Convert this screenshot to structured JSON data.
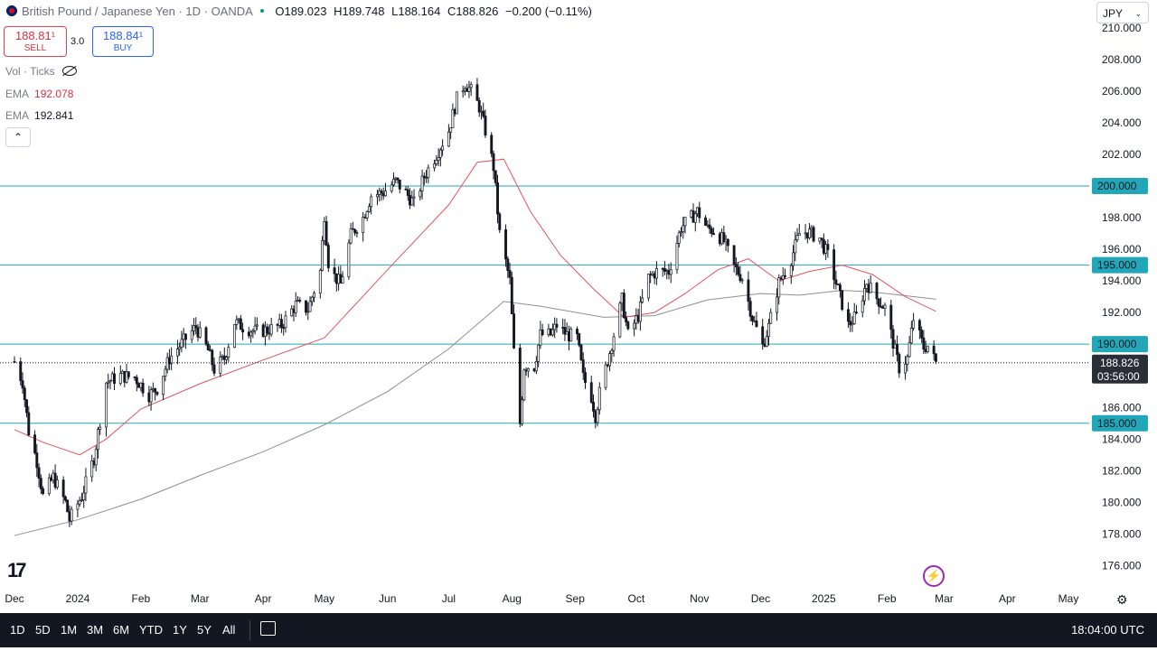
{
  "header": {
    "symbol_title": "British Pound / Japanese Yen · 1D · OANDA",
    "o_label": "O",
    "o_value": "189.023",
    "h_label": "H",
    "h_value": "189.748",
    "l_label": "L",
    "l_value": "188.164",
    "c_label": "C",
    "c_value": "188.826",
    "change": "−0.200 (−0.11%)"
  },
  "trade": {
    "sell_price": "188.81¹",
    "sell_label": "SELL",
    "spread": "3.0",
    "buy_price": "188.84¹",
    "buy_label": "BUY"
  },
  "indicators": {
    "volume_label": "Vol · Ticks",
    "ema1_label": "EMA",
    "ema1_value": "192.078",
    "ema2_label": "EMA",
    "ema2_value": "192.841"
  },
  "collapse_icon": "chevron-up-icon",
  "currency": {
    "label": "JPY"
  },
  "colors": {
    "up": "#131722",
    "down": "#131722",
    "ema_fast": "#e0555e",
    "ema_slow": "#8f8f8f",
    "hline": "#22a7b8",
    "accent": "#2962ff"
  },
  "chart_data": {
    "type": "candlestick",
    "symbol": "GBP/JPY",
    "ylim": [
      175,
      210.5
    ],
    "yticks": [
      "210.000",
      "208.000",
      "206.000",
      "204.000",
      "202.000",
      "200.000",
      "198.000",
      "196.000",
      "194.000",
      "192.000",
      "190.000",
      "188.000",
      "186.000",
      "184.000",
      "182.000",
      "180.000",
      "178.000",
      "176.000"
    ],
    "xlabels": [
      "Dec",
      "2024",
      "Feb",
      "Mar",
      "Apr",
      "May",
      "Jun",
      "Jul",
      "Aug",
      "Sep",
      "Oct",
      "Nov",
      "Dec",
      "2025",
      "Feb",
      "Mar",
      "Apr",
      "May"
    ],
    "date_range": [
      "2023-12-01",
      "2025-02-25"
    ],
    "horizontal_levels": [
      {
        "price": 200.0,
        "label": "200.000"
      },
      {
        "price": 195.0,
        "label": "195.000"
      },
      {
        "price": 190.0,
        "label": "190.000"
      },
      {
        "price": 185.0,
        "label": "185.000"
      }
    ],
    "last_price": {
      "price": 188.826,
      "label": "188.826",
      "countdown": "03:56:00"
    },
    "close_path": [
      [
        "2023-12-01",
        188.9
      ],
      [
        "2023-12-05",
        187.6
      ],
      [
        "2023-12-08",
        184.5
      ],
      [
        "2023-12-12",
        182.6
      ],
      [
        "2023-12-15",
        180.4
      ],
      [
        "2023-12-20",
        181.6
      ],
      [
        "2023-12-26",
        180.0
      ],
      [
        "2023-12-28",
        178.9
      ],
      [
        "2024-01-03",
        180.4
      ],
      [
        "2024-01-09",
        182.8
      ],
      [
        "2024-01-15",
        187.6
      ],
      [
        "2024-01-22",
        188.0
      ],
      [
        "2024-01-29",
        187.9
      ],
      [
        "2024-02-05",
        186.8
      ],
      [
        "2024-02-09",
        187.2
      ],
      [
        "2024-02-15",
        189.1
      ],
      [
        "2024-02-22",
        190.2
      ],
      [
        "2024-02-28",
        191.1
      ],
      [
        "2024-03-05",
        189.6
      ],
      [
        "2024-03-08",
        188.4
      ],
      [
        "2024-03-13",
        189.1
      ],
      [
        "2024-03-18",
        191.4
      ],
      [
        "2024-03-22",
        191.1
      ],
      [
        "2024-03-28",
        190.8
      ],
      [
        "2024-04-03",
        190.9
      ],
      [
        "2024-04-10",
        191.2
      ],
      [
        "2024-04-17",
        192.5
      ],
      [
        "2024-04-23",
        192.2
      ],
      [
        "2024-04-29",
        194.6
      ],
      [
        "2024-05-01",
        198.2
      ],
      [
        "2024-05-03",
        195.2
      ],
      [
        "2024-05-06",
        194.3
      ],
      [
        "2024-05-09",
        193.8
      ],
      [
        "2024-05-14",
        196.9
      ],
      [
        "2024-05-20",
        198.0
      ],
      [
        "2024-05-24",
        199.4
      ],
      [
        "2024-05-30",
        199.6
      ],
      [
        "2024-06-05",
        200.3
      ],
      [
        "2024-06-11",
        199.4
      ],
      [
        "2024-06-14",
        198.9
      ],
      [
        "2024-06-19",
        200.6
      ],
      [
        "2024-06-25",
        202.0
      ],
      [
        "2024-07-01",
        203.5
      ],
      [
        "2024-07-05",
        205.5
      ],
      [
        "2024-07-09",
        206.5
      ],
      [
        "2024-07-12",
        206.0
      ],
      [
        "2024-07-16",
        205.0
      ],
      [
        "2024-07-19",
        203.5
      ],
      [
        "2024-07-23",
        201.2
      ],
      [
        "2024-07-26",
        197.0
      ],
      [
        "2024-07-31",
        194.0
      ],
      [
        "2024-08-02",
        189.5
      ],
      [
        "2024-08-05",
        185.0
      ],
      [
        "2024-08-07",
        188.6
      ],
      [
        "2024-08-12",
        188.6
      ],
      [
        "2024-08-15",
        190.6
      ],
      [
        "2024-08-20",
        190.6
      ],
      [
        "2024-08-23",
        191.2
      ],
      [
        "2024-08-28",
        190.6
      ],
      [
        "2024-09-02",
        190.4
      ],
      [
        "2024-09-05",
        187.9
      ],
      [
        "2024-09-09",
        186.7
      ],
      [
        "2024-09-11",
        185.5
      ],
      [
        "2024-09-13",
        186.9
      ],
      [
        "2024-09-18",
        189.5
      ],
      [
        "2024-09-24",
        192.8
      ],
      [
        "2024-09-27",
        190.6
      ],
      [
        "2024-10-02",
        191.8
      ],
      [
        "2024-10-07",
        194.2
      ],
      [
        "2024-10-11",
        194.6
      ],
      [
        "2024-10-17",
        194.6
      ],
      [
        "2024-10-23",
        197.4
      ],
      [
        "2024-10-28",
        198.0
      ],
      [
        "2024-10-31",
        198.4
      ],
      [
        "2024-11-05",
        197.3
      ],
      [
        "2024-11-08",
        197.2
      ],
      [
        "2024-11-13",
        196.5
      ],
      [
        "2024-11-18",
        194.9
      ],
      [
        "2024-11-22",
        194.2
      ],
      [
        "2024-11-27",
        191.7
      ],
      [
        "2024-12-02",
        189.9
      ],
      [
        "2024-12-05",
        191.1
      ],
      [
        "2024-12-10",
        193.9
      ],
      [
        "2024-12-16",
        195.4
      ],
      [
        "2024-12-20",
        197.0
      ],
      [
        "2024-12-24",
        197.1
      ],
      [
        "2024-12-30",
        196.7
      ],
      [
        "2025-01-03",
        195.6
      ],
      [
        "2025-01-09",
        193.0
      ],
      [
        "2025-01-13",
        191.2
      ],
      [
        "2025-01-17",
        191.8
      ],
      [
        "2025-01-22",
        193.9
      ],
      [
        "2025-01-27",
        192.9
      ],
      [
        "2025-01-31",
        192.3
      ],
      [
        "2025-02-04",
        190.1
      ],
      [
        "2025-02-07",
        188.5
      ],
      [
        "2025-02-11",
        189.1
      ],
      [
        "2025-02-14",
        191.6
      ],
      [
        "2025-02-19",
        189.8
      ],
      [
        "2025-02-21",
        189.9
      ],
      [
        "2025-02-25",
        188.826
      ]
    ],
    "ema_fast_path": [
      [
        "2023-12-01",
        184.6
      ],
      [
        "2023-12-15",
        183.8
      ],
      [
        "2024-01-02",
        183.0
      ],
      [
        "2024-01-15",
        184.0
      ],
      [
        "2024-02-01",
        185.9
      ],
      [
        "2024-03-01",
        187.5
      ],
      [
        "2024-04-01",
        189.0
      ],
      [
        "2024-05-01",
        190.4
      ],
      [
        "2024-06-01",
        194.7
      ],
      [
        "2024-07-01",
        198.8
      ],
      [
        "2024-07-15",
        201.5
      ],
      [
        "2024-07-28",
        201.7
      ],
      [
        "2024-08-10",
        198.4
      ],
      [
        "2024-08-25",
        195.6
      ],
      [
        "2024-09-10",
        193.5
      ],
      [
        "2024-09-25",
        191.7
      ],
      [
        "2024-10-10",
        192.0
      ],
      [
        "2024-10-25",
        193.2
      ],
      [
        "2024-11-10",
        194.7
      ],
      [
        "2024-11-25",
        195.4
      ],
      [
        "2024-12-10",
        194.0
      ],
      [
        "2024-12-25",
        194.6
      ],
      [
        "2025-01-10",
        195.0
      ],
      [
        "2025-01-25",
        194.4
      ],
      [
        "2025-02-10",
        193.0
      ],
      [
        "2025-02-25",
        192.078
      ]
    ],
    "ema_slow_path": [
      [
        "2023-12-01",
        177.9
      ],
      [
        "2024-01-01",
        178.9
      ],
      [
        "2024-02-01",
        180.2
      ],
      [
        "2024-03-01",
        181.7
      ],
      [
        "2024-04-01",
        183.2
      ],
      [
        "2024-05-01",
        184.9
      ],
      [
        "2024-06-01",
        187.0
      ],
      [
        "2024-07-01",
        189.7
      ],
      [
        "2024-07-28",
        192.7
      ],
      [
        "2024-08-15",
        192.4
      ],
      [
        "2024-09-15",
        191.7
      ],
      [
        "2024-10-10",
        191.8
      ],
      [
        "2024-11-05",
        192.8
      ],
      [
        "2024-12-01",
        193.2
      ],
      [
        "2024-12-20",
        193.1
      ],
      [
        "2025-01-10",
        193.4
      ],
      [
        "2025-01-25",
        193.3
      ],
      [
        "2025-02-25",
        192.841
      ]
    ]
  },
  "bottom": {
    "periods": [
      "1D",
      "5D",
      "1M",
      "3M",
      "6M",
      "YTD",
      "1Y",
      "5Y",
      "All"
    ],
    "time": "18:04:00 UTC"
  }
}
